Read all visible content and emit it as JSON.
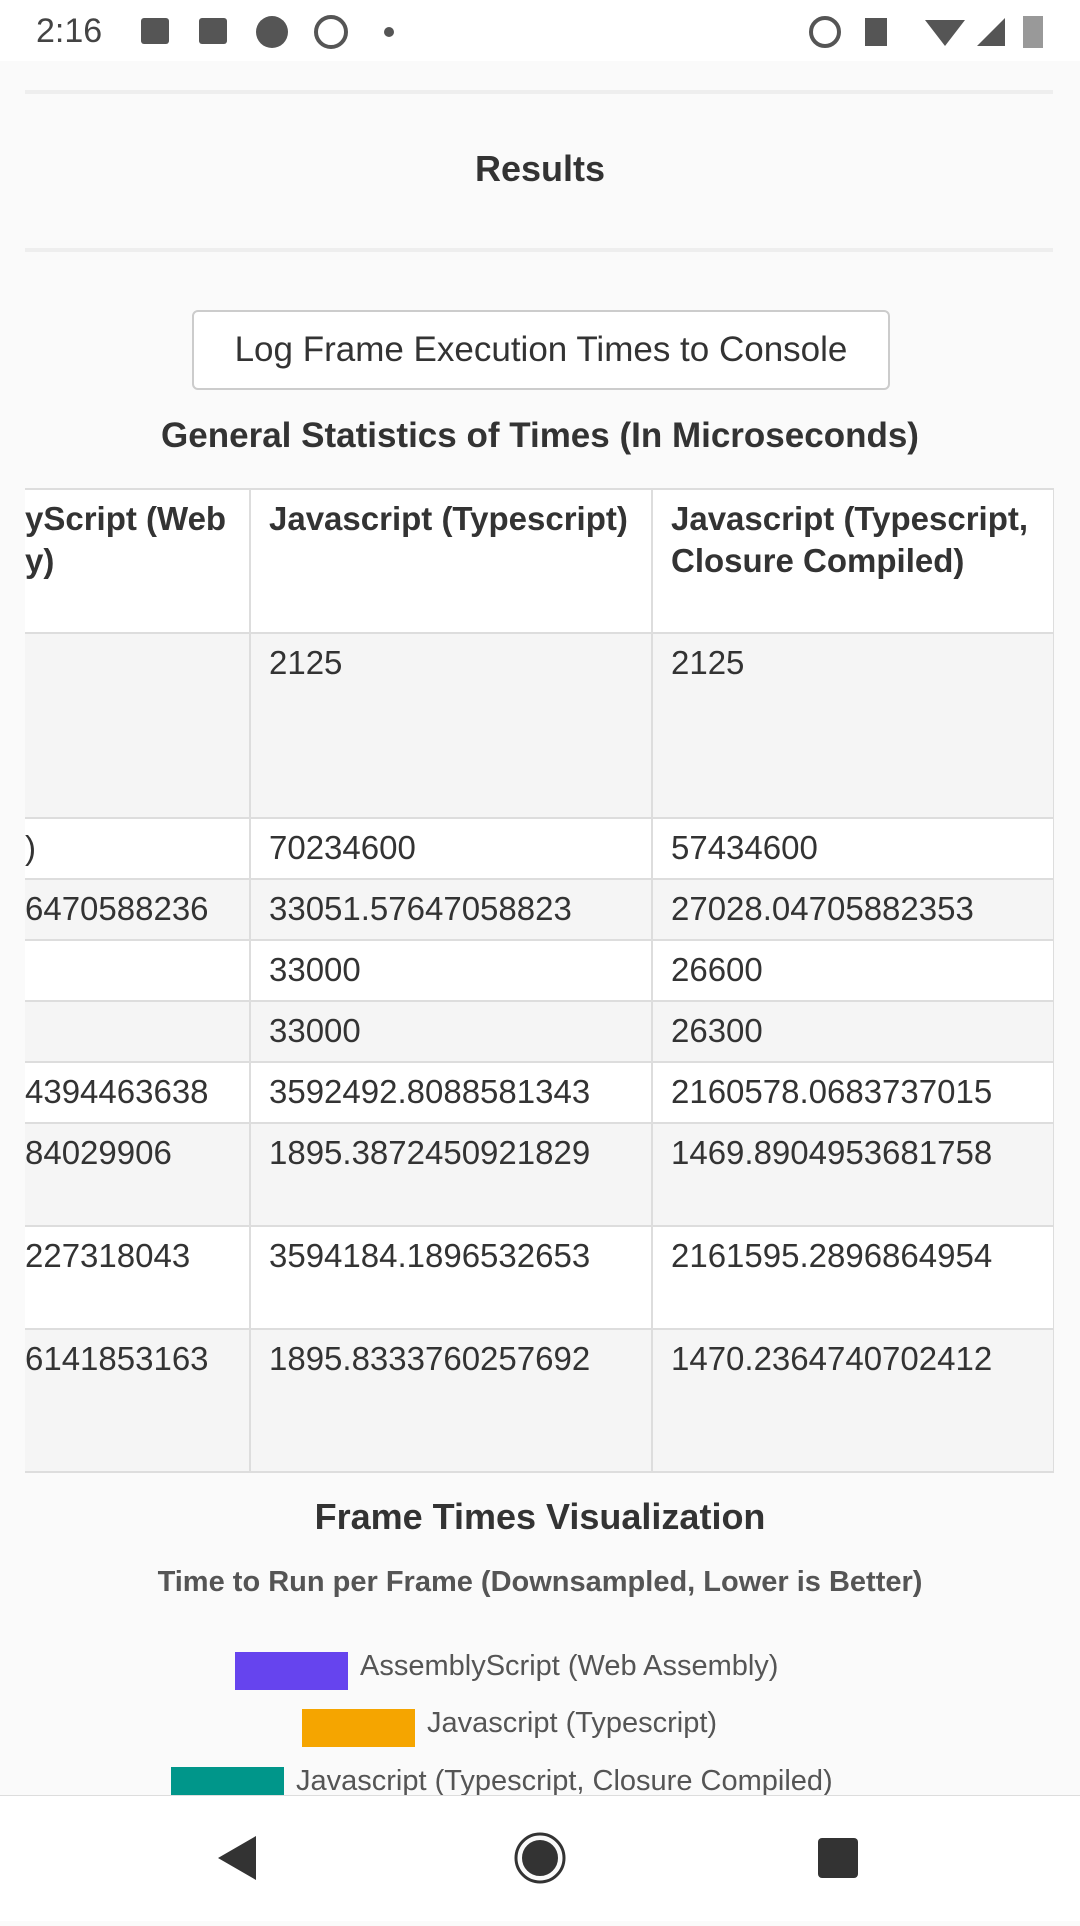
{
  "status_bar": {
    "time": "2:16"
  },
  "page": {
    "section_title": "Results",
    "button": "Log Frame Execution Times to Console",
    "table_title": "General Statistics of Times (In Microseconds)",
    "table": {
      "header": [
        "yScript (Web y)",
        "Javascript (Typescript)",
        "Javascript (Typescript, Closure Compiled)"
      ],
      "rows": [
        [
          null,
          "2125",
          "2125"
        ],
        [
          ")",
          "70234600",
          "57434600"
        ],
        [
          "6470588236",
          "33051.57647058823",
          "27028.04705882353"
        ],
        [
          null,
          "33000",
          "26600"
        ],
        [
          null,
          "33000",
          "26300"
        ],
        [
          "4394463638",
          "3592492.8088581343",
          "2160578.0683737015"
        ],
        [
          "84029906",
          "1895.3872450921829",
          "1469.8904953681758"
        ],
        [
          "227318043",
          "3594184.1896532653",
          "2161595.2896864954"
        ],
        [
          "6141853163",
          "1895.8333760257692",
          "1470.2364740702412"
        ]
      ]
    },
    "viz_title": "Frame Times Visualization",
    "chart_title": "Time to Run per Frame (Downsampled, Lower is Better)",
    "legend": [
      {
        "name": "AssemblyScript (Web Assembly)",
        "color": "#6644ee"
      },
      {
        "name": "Javascript (Typescript)",
        "color": "#f5a500"
      },
      {
        "name": "Javascript (Typescript, Closure Compiled)",
        "color": "#00968a"
      }
    ]
  }
}
